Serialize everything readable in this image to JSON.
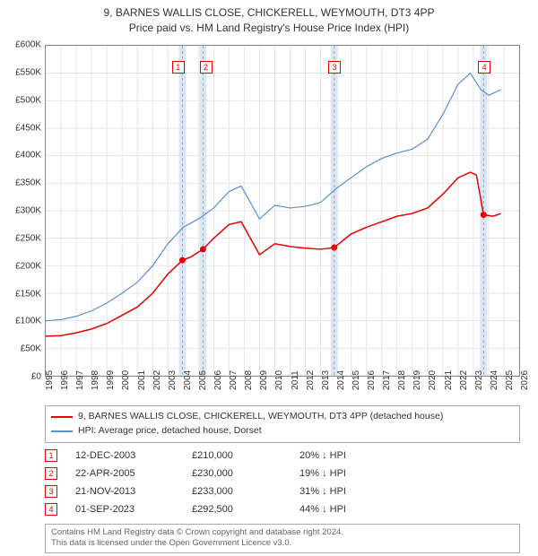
{
  "title": {
    "line1": "9, BARNES WALLIS CLOSE, CHICKERELL, WEYMOUTH, DT3 4PP",
    "line2": "Price paid vs. HM Land Registry's House Price Index (HPI)"
  },
  "chart": {
    "type": "line",
    "background_color": "#ffffff",
    "border_color": "#888888",
    "grid_color": "#e5e5e5",
    "xlim": [
      1995,
      2026
    ],
    "ylim": [
      0,
      600000
    ],
    "ytick_step": 50000,
    "yticks": [
      "£0",
      "£50K",
      "£100K",
      "£150K",
      "£200K",
      "£250K",
      "£300K",
      "£350K",
      "£400K",
      "£450K",
      "£500K",
      "£550K",
      "£600K"
    ],
    "xticks": [
      1995,
      1996,
      1997,
      1998,
      1999,
      2000,
      2001,
      2002,
      2003,
      2004,
      2005,
      2006,
      2007,
      2008,
      2009,
      2010,
      2011,
      2012,
      2013,
      2014,
      2015,
      2016,
      2017,
      2018,
      2019,
      2020,
      2021,
      2022,
      2023,
      2024,
      2025,
      2026
    ],
    "series": [
      {
        "name": "9, BARNES WALLIS CLOSE, CHICKERELL, WEYMOUTH, DT3 4PP (detached house)",
        "color": "#e60000",
        "line_width": 1.5,
        "data": [
          [
            1995,
            72000
          ],
          [
            1996,
            73000
          ],
          [
            1997,
            78000
          ],
          [
            1998,
            85000
          ],
          [
            1999,
            95000
          ],
          [
            2000,
            110000
          ],
          [
            2001,
            125000
          ],
          [
            2002,
            150000
          ],
          [
            2003,
            185000
          ],
          [
            2003.95,
            210000
          ],
          [
            2004.5,
            216000
          ],
          [
            2005.3,
            230000
          ],
          [
            2006,
            250000
          ],
          [
            2007,
            275000
          ],
          [
            2007.8,
            280000
          ],
          [
            2008.5,
            245000
          ],
          [
            2009,
            220000
          ],
          [
            2010,
            240000
          ],
          [
            2011,
            235000
          ],
          [
            2012,
            232000
          ],
          [
            2013,
            230000
          ],
          [
            2013.89,
            233000
          ],
          [
            2015,
            258000
          ],
          [
            2016,
            270000
          ],
          [
            2017,
            280000
          ],
          [
            2018,
            290000
          ],
          [
            2019,
            295000
          ],
          [
            2020,
            305000
          ],
          [
            2021,
            330000
          ],
          [
            2022,
            360000
          ],
          [
            2022.8,
            370000
          ],
          [
            2023.2,
            365000
          ],
          [
            2023.67,
            292500
          ],
          [
            2024.3,
            290000
          ],
          [
            2024.8,
            295000
          ]
        ]
      },
      {
        "name": "HPI: Average price, detached house, Dorset",
        "color": "#5b8fd6",
        "line_width": 1.2,
        "data": [
          [
            1995,
            100000
          ],
          [
            1996,
            102000
          ],
          [
            1997,
            108000
          ],
          [
            1998,
            118000
          ],
          [
            1999,
            132000
          ],
          [
            2000,
            150000
          ],
          [
            2001,
            170000
          ],
          [
            2002,
            200000
          ],
          [
            2003,
            240000
          ],
          [
            2004,
            270000
          ],
          [
            2005,
            285000
          ],
          [
            2006,
            305000
          ],
          [
            2007,
            335000
          ],
          [
            2007.8,
            345000
          ],
          [
            2008.5,
            310000
          ],
          [
            2009,
            285000
          ],
          [
            2010,
            310000
          ],
          [
            2011,
            305000
          ],
          [
            2012,
            308000
          ],
          [
            2013,
            315000
          ],
          [
            2014,
            340000
          ],
          [
            2015,
            360000
          ],
          [
            2016,
            380000
          ],
          [
            2017,
            395000
          ],
          [
            2018,
            405000
          ],
          [
            2019,
            412000
          ],
          [
            2020,
            430000
          ],
          [
            2021,
            475000
          ],
          [
            2022,
            530000
          ],
          [
            2022.8,
            550000
          ],
          [
            2023.5,
            520000
          ],
          [
            2024,
            510000
          ],
          [
            2024.8,
            520000
          ]
        ]
      }
    ],
    "event_bands": [
      {
        "x": 2003.95,
        "color": "#d9e6f5"
      },
      {
        "x": 2005.3,
        "color": "#d9e6f5"
      },
      {
        "x": 2013.89,
        "color": "#d9e6f5"
      },
      {
        "x": 2023.67,
        "color": "#d9e6f5"
      }
    ],
    "event_markers": [
      {
        "n": "1",
        "x": 2003.95,
        "y": 210000,
        "color": "#e60000"
      },
      {
        "n": "2",
        "x": 2005.3,
        "y": 230000,
        "color": "#e60000"
      },
      {
        "n": "3",
        "x": 2013.89,
        "y": 233000,
        "color": "#e60000"
      },
      {
        "n": "4",
        "x": 2023.67,
        "y": 292500,
        "color": "#e60000"
      }
    ],
    "marker_boxes": [
      {
        "n": "1",
        "x": 2003.7,
        "top_y": 560000,
        "color": "#e60000"
      },
      {
        "n": "2",
        "x": 2005.5,
        "top_y": 560000,
        "color": "#e60000"
      },
      {
        "n": "3",
        "x": 2013.89,
        "top_y": 560000,
        "color": "#e60000"
      },
      {
        "n": "4",
        "x": 2023.67,
        "top_y": 560000,
        "color": "#e60000"
      }
    ]
  },
  "legend": {
    "items": [
      {
        "color": "#e60000",
        "label": "9, BARNES WALLIS CLOSE, CHICKERELL, WEYMOUTH, DT3 4PP (detached house)"
      },
      {
        "color": "#5b8fd6",
        "label": "HPI: Average price, detached house, Dorset"
      }
    ]
  },
  "events": [
    {
      "n": "1",
      "color": "#e60000",
      "date": "12-DEC-2003",
      "price": "£210,000",
      "diff": "20% ↓ HPI"
    },
    {
      "n": "2",
      "color": "#e60000",
      "date": "22-APR-2005",
      "price": "£230,000",
      "diff": "19% ↓ HPI"
    },
    {
      "n": "3",
      "color": "#e60000",
      "date": "21-NOV-2013",
      "price": "£233,000",
      "diff": "31% ↓ HPI"
    },
    {
      "n": "4",
      "color": "#e60000",
      "date": "01-SEP-2023",
      "price": "£292,500",
      "diff": "44% ↓ HPI"
    }
  ],
  "footer": {
    "line1": "Contains HM Land Registry data © Crown copyright and database right 2024.",
    "line2": "This data is licensed under the Open Government Licence v3.0."
  }
}
